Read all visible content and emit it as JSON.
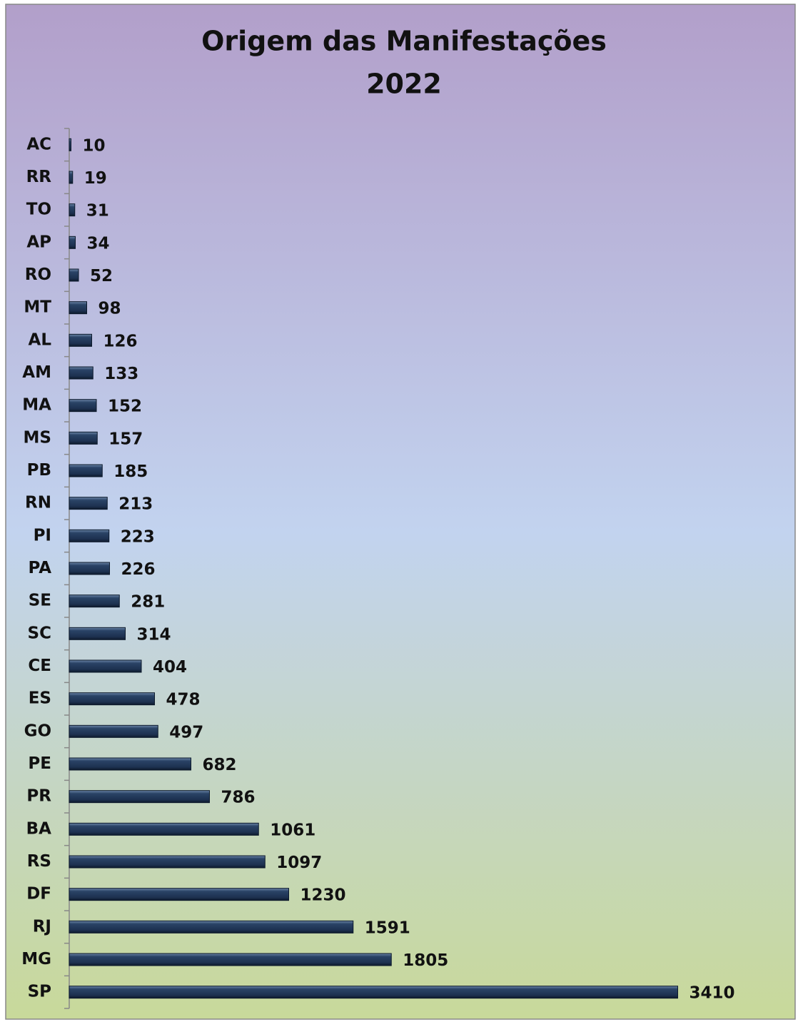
{
  "chart_data": {
    "type": "barh",
    "title": "Origem das Manifestações",
    "subtitle": "2022",
    "categories": [
      "AC",
      "RR",
      "TO",
      "AP",
      "RO",
      "MT",
      "AL",
      "AM",
      "MA",
      "MS",
      "PB",
      "RN",
      "PI",
      "PA",
      "SE",
      "SC",
      "CE",
      "ES",
      "GO",
      "PE",
      "PR",
      "BA",
      "RS",
      "DF",
      "RJ",
      "MG",
      "SP"
    ],
    "values": [
      10,
      19,
      31,
      34,
      52,
      98,
      126,
      133,
      152,
      157,
      185,
      213,
      223,
      226,
      281,
      314,
      404,
      478,
      497,
      682,
      786,
      1061,
      1097,
      1230,
      1591,
      1805,
      3410
    ],
    "color": "#2a4366",
    "xlim": [
      0,
      4000
    ]
  }
}
